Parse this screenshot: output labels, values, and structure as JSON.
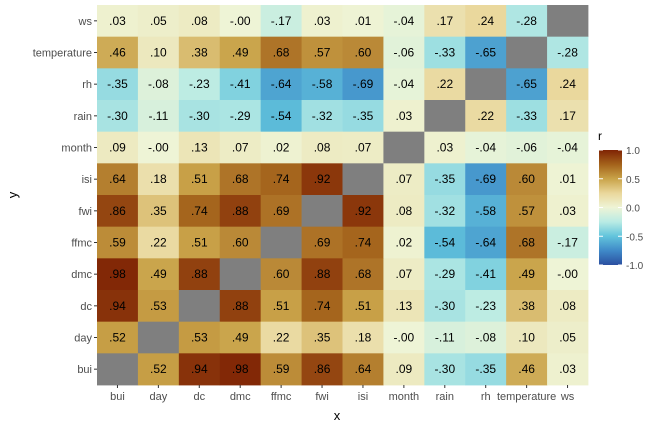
{
  "chart_data": {
    "type": "heatmap",
    "xlabel": "x",
    "ylabel": "y",
    "x_categories": [
      "bui",
      "day",
      "dc",
      "dmc",
      "ffmc",
      "fwi",
      "isi",
      "month",
      "rain",
      "rh",
      "temperature",
      "ws"
    ],
    "y_categories_top_to_bottom": [
      "ws",
      "temperature",
      "rh",
      "rain",
      "month",
      "isi",
      "fwi",
      "ffmc",
      "dmc",
      "dc",
      "day",
      "bui"
    ],
    "values": [
      [
        0.03,
        0.05,
        0.08,
        -0.0,
        -0.17,
        0.03,
        0.01,
        -0.04,
        0.17,
        0.24,
        -0.28,
        null
      ],
      [
        0.46,
        0.1,
        0.38,
        0.49,
        0.68,
        0.57,
        0.6,
        -0.06,
        -0.33,
        -0.65,
        null,
        -0.28
      ],
      [
        -0.35,
        -0.08,
        -0.23,
        -0.41,
        -0.64,
        -0.58,
        -0.69,
        -0.04,
        0.22,
        null,
        -0.65,
        0.24
      ],
      [
        -0.3,
        -0.11,
        -0.3,
        -0.29,
        -0.54,
        -0.32,
        -0.35,
        0.03,
        null,
        0.22,
        -0.33,
        0.17
      ],
      [
        0.09,
        -0.0,
        0.13,
        0.07,
        0.02,
        0.08,
        0.07,
        null,
        0.03,
        -0.04,
        -0.06,
        -0.04
      ],
      [
        0.64,
        0.18,
        0.51,
        0.68,
        0.74,
        0.92,
        null,
        0.07,
        -0.35,
        -0.69,
        0.6,
        0.01
      ],
      [
        0.86,
        0.35,
        0.74,
        0.88,
        0.69,
        null,
        0.92,
        0.08,
        -0.32,
        -0.58,
        0.57,
        0.03
      ],
      [
        0.59,
        0.22,
        0.51,
        0.6,
        null,
        0.69,
        0.74,
        0.02,
        -0.54,
        -0.64,
        0.68,
        -0.17
      ],
      [
        0.98,
        0.49,
        0.88,
        null,
        0.6,
        0.88,
        0.68,
        0.07,
        -0.29,
        -0.41,
        0.49,
        -0.0
      ],
      [
        0.94,
        0.53,
        null,
        0.88,
        0.51,
        0.74,
        0.51,
        0.13,
        -0.3,
        -0.23,
        0.38,
        0.08
      ],
      [
        0.52,
        null,
        0.53,
        0.49,
        0.22,
        0.35,
        0.18,
        -0.0,
        -0.11,
        -0.08,
        0.1,
        0.05
      ],
      [
        null,
        0.52,
        0.94,
        0.98,
        0.59,
        0.86,
        0.64,
        0.09,
        -0.3,
        -0.35,
        0.46,
        0.03
      ]
    ],
    "labels": [
      [
        ".03",
        ".05",
        ".08",
        "-.00",
        "-.17",
        ".03",
        ".01",
        "-.04",
        ".17",
        ".24",
        "-.28",
        ""
      ],
      [
        ".46",
        ".10",
        ".38",
        ".49",
        ".68",
        ".57",
        ".60",
        "-.06",
        "-.33",
        "-.65",
        "",
        "-.28"
      ],
      [
        "-.35",
        "-.08",
        "-.23",
        "-.41",
        "-.64",
        "-.58",
        "-.69",
        "-.04",
        ".22",
        "",
        "-.65",
        ".24"
      ],
      [
        "-.30",
        "-.11",
        "-.30",
        "-.29",
        "-.54",
        "-.32",
        "-.35",
        ".03",
        "",
        ".22",
        "-.33",
        ".17"
      ],
      [
        ".09",
        "-.00",
        ".13",
        ".07",
        ".02",
        ".08",
        ".07",
        "",
        ".03",
        "-.04",
        "-.06",
        "-.04"
      ],
      [
        ".64",
        ".18",
        ".51",
        ".68",
        ".74",
        ".92",
        "",
        ".07",
        "-.35",
        "-.69",
        ".60",
        ".01"
      ],
      [
        ".86",
        ".35",
        ".74",
        ".88",
        ".69",
        "",
        ".92",
        ".08",
        "-.32",
        "-.58",
        ".57",
        ".03"
      ],
      [
        ".59",
        ".22",
        ".51",
        ".60",
        "",
        ".69",
        ".74",
        ".02",
        "-.54",
        "-.64",
        ".68",
        "-.17"
      ],
      [
        ".98",
        ".49",
        ".88",
        "",
        ".60",
        ".88",
        ".68",
        ".07",
        "-.29",
        "-.41",
        ".49",
        "-.00"
      ],
      [
        ".94",
        ".53",
        "",
        ".88",
        ".51",
        ".74",
        ".51",
        ".13",
        "-.30",
        "-.23",
        ".38",
        ".08"
      ],
      [
        ".52",
        "",
        ".53",
        ".49",
        ".22",
        ".35",
        ".18",
        "-.00",
        "-.11",
        "-.08",
        ".10",
        ".05"
      ],
      [
        "",
        ".52",
        ".94",
        ".98",
        ".59",
        ".86",
        ".64",
        ".09",
        "-.30",
        "-.35",
        ".46",
        ".03"
      ]
    ],
    "missing_color": "#7f7f7f",
    "panel_background": "#ebebeb",
    "legend": {
      "title": "r",
      "position": "right",
      "ticks": [
        1.0,
        0.5,
        0.0,
        -0.5,
        -1.0
      ],
      "tick_labels": [
        "1.0",
        "0.5",
        "0.0",
        "-0.5",
        "-1.0"
      ],
      "range": [
        -1.0,
        1.0
      ]
    },
    "colorscale": [
      [
        -1.0,
        "#2b4fa0"
      ],
      [
        -0.75,
        "#3f8ac8"
      ],
      [
        -0.5,
        "#62c4dc"
      ],
      [
        -0.25,
        "#b9ebe4"
      ],
      [
        0.0,
        "#eef4d6"
      ],
      [
        0.25,
        "#ead79b"
      ],
      [
        0.5,
        "#c9a349"
      ],
      [
        0.75,
        "#a4621b"
      ],
      [
        1.0,
        "#7f2304"
      ]
    ]
  }
}
